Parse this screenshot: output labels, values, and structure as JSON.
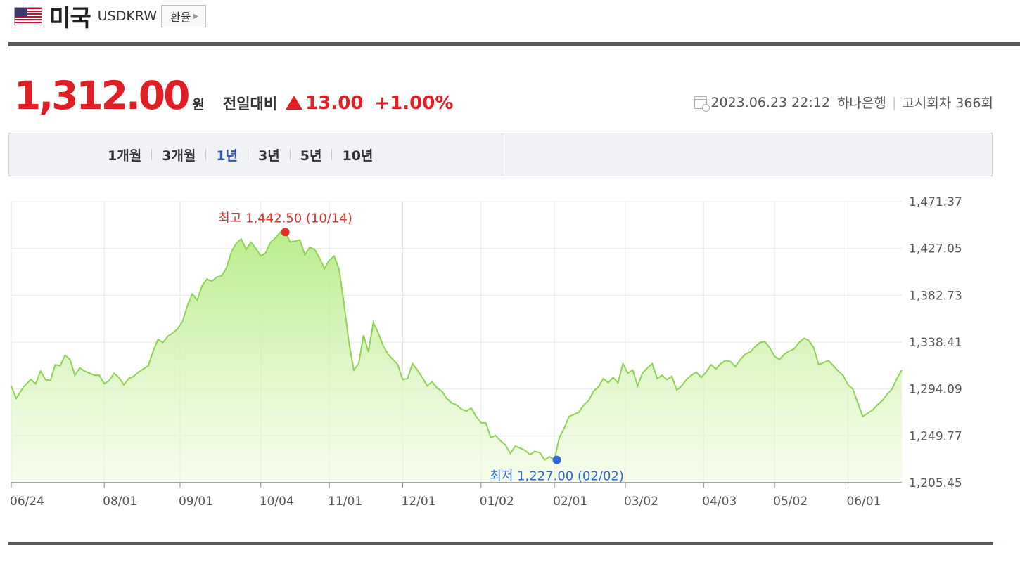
{
  "header": {
    "flag_icon": "us-flag-icon",
    "country": "미국",
    "code": "USDKRW",
    "fx_button": "환율"
  },
  "quote": {
    "price": "1,312.00",
    "unit": "원",
    "compare_label": "전일대비",
    "change": "13.00",
    "change_pct": "+1.00%",
    "direction": "up",
    "up_color": "#e01e24"
  },
  "meta": {
    "datetime": "2023.06.23 22:12",
    "bank": "하나은행",
    "notice": "고시회차 366회"
  },
  "tabs": [
    {
      "label": "1개월",
      "active": false
    },
    {
      "label": "3개월",
      "active": false
    },
    {
      "label": "1년",
      "active": true
    },
    {
      "label": "3년",
      "active": false
    },
    {
      "label": "5년",
      "active": false
    },
    {
      "label": "10년",
      "active": false
    }
  ],
  "chart_data": {
    "type": "area",
    "series_color": "#8fd254",
    "fill_color": "#c8f0a0",
    "ylim": [
      1205.45,
      1471.37
    ],
    "yticks": [
      "1,471.37",
      "1,427.05",
      "1,382.73",
      "1,338.41",
      "1,294.09",
      "1,249.77",
      "1,205.45"
    ],
    "xticks": [
      {
        "label": "06/24",
        "day": 0
      },
      {
        "label": "08/01",
        "day": 38
      },
      {
        "label": "09/01",
        "day": 69
      },
      {
        "label": "10/04",
        "day": 102
      },
      {
        "label": "11/01",
        "day": 130
      },
      {
        "label": "12/01",
        "day": 160
      },
      {
        "label": "01/02",
        "day": 192
      },
      {
        "label": "02/01",
        "day": 222
      },
      {
        "label": "03/02",
        "day": 251
      },
      {
        "label": "04/03",
        "day": 283
      },
      {
        "label": "05/02",
        "day": 312
      },
      {
        "label": "06/01",
        "day": 342
      }
    ],
    "x_max_day": 364,
    "high": {
      "label": "최고 1,442.50 (10/14)",
      "value": 1442.5,
      "day": 112,
      "color": "#e0302a"
    },
    "low": {
      "label": "최저 1,227.00 (02/02)",
      "value": 1227.0,
      "day": 223,
      "color": "#2d6ad6"
    },
    "points": [
      [
        0,
        1297
      ],
      [
        2,
        1285
      ],
      [
        5,
        1296
      ],
      [
        8,
        1303
      ],
      [
        10,
        1299
      ],
      [
        12,
        1311
      ],
      [
        14,
        1303
      ],
      [
        16,
        1302
      ],
      [
        18,
        1317
      ],
      [
        20,
        1316
      ],
      [
        22,
        1326
      ],
      [
        24,
        1322
      ],
      [
        26,
        1307
      ],
      [
        28,
        1314
      ],
      [
        30,
        1311
      ],
      [
        32,
        1309
      ],
      [
        34,
        1307
      ],
      [
        36,
        1307
      ],
      [
        38,
        1299
      ],
      [
        40,
        1302
      ],
      [
        42,
        1309
      ],
      [
        44,
        1305
      ],
      [
        46,
        1298
      ],
      [
        48,
        1304
      ],
      [
        50,
        1306
      ],
      [
        52,
        1310
      ],
      [
        54,
        1313
      ],
      [
        56,
        1316
      ],
      [
        58,
        1330
      ],
      [
        60,
        1341
      ],
      [
        62,
        1338
      ],
      [
        64,
        1344
      ],
      [
        66,
        1347
      ],
      [
        68,
        1351
      ],
      [
        70,
        1358
      ],
      [
        72,
        1373
      ],
      [
        74,
        1384
      ],
      [
        76,
        1378
      ],
      [
        78,
        1392
      ],
      [
        80,
        1398
      ],
      [
        82,
        1396
      ],
      [
        84,
        1400
      ],
      [
        86,
        1401
      ],
      [
        88,
        1409
      ],
      [
        90,
        1424
      ],
      [
        92,
        1432
      ],
      [
        94,
        1436
      ],
      [
        96,
        1426
      ],
      [
        98,
        1433
      ],
      [
        100,
        1427
      ],
      [
        102,
        1420
      ],
      [
        104,
        1423
      ],
      [
        106,
        1433
      ],
      [
        108,
        1437
      ],
      [
        110,
        1442.5
      ],
      [
        112,
        1442.5
      ],
      [
        114,
        1433
      ],
      [
        116,
        1434
      ],
      [
        118,
        1435
      ],
      [
        120,
        1421
      ],
      [
        122,
        1428
      ],
      [
        124,
        1426
      ],
      [
        126,
        1418
      ],
      [
        128,
        1408
      ],
      [
        130,
        1416
      ],
      [
        132,
        1420
      ],
      [
        134,
        1407
      ],
      [
        136,
        1375
      ],
      [
        138,
        1338
      ],
      [
        140,
        1312
      ],
      [
        142,
        1318
      ],
      [
        144,
        1345
      ],
      [
        146,
        1329
      ],
      [
        148,
        1357
      ],
      [
        150,
        1347
      ],
      [
        152,
        1335
      ],
      [
        154,
        1327
      ],
      [
        156,
        1322
      ],
      [
        158,
        1317
      ],
      [
        160,
        1303
      ],
      [
        162,
        1304
      ],
      [
        164,
        1318
      ],
      [
        166,
        1312
      ],
      [
        168,
        1305
      ],
      [
        170,
        1297
      ],
      [
        172,
        1301
      ],
      [
        174,
        1295
      ],
      [
        176,
        1292
      ],
      [
        178,
        1285
      ],
      [
        180,
        1281
      ],
      [
        182,
        1279
      ],
      [
        184,
        1275
      ],
      [
        186,
        1273
      ],
      [
        188,
        1276
      ],
      [
        190,
        1268
      ],
      [
        192,
        1262
      ],
      [
        194,
        1262
      ],
      [
        196,
        1248
      ],
      [
        198,
        1250
      ],
      [
        200,
        1245
      ],
      [
        202,
        1241
      ],
      [
        204,
        1233
      ],
      [
        206,
        1240
      ],
      [
        208,
        1238
      ],
      [
        210,
        1236
      ],
      [
        212,
        1232
      ],
      [
        214,
        1235
      ],
      [
        216,
        1234
      ],
      [
        218,
        1227
      ],
      [
        220,
        1230
      ],
      [
        222,
        1227
      ],
      [
        224,
        1248
      ],
      [
        226,
        1257
      ],
      [
        228,
        1268
      ],
      [
        230,
        1270
      ],
      [
        232,
        1272
      ],
      [
        234,
        1279
      ],
      [
        236,
        1283
      ],
      [
        238,
        1292
      ],
      [
        240,
        1296
      ],
      [
        242,
        1304
      ],
      [
        244,
        1300
      ],
      [
        246,
        1305
      ],
      [
        248,
        1300
      ],
      [
        250,
        1318
      ],
      [
        252,
        1309
      ],
      [
        254,
        1312
      ],
      [
        256,
        1297
      ],
      [
        258,
        1309
      ],
      [
        260,
        1314
      ],
      [
        262,
        1318
      ],
      [
        264,
        1304
      ],
      [
        266,
        1307
      ],
      [
        268,
        1303
      ],
      [
        270,
        1306
      ],
      [
        272,
        1293
      ],
      [
        274,
        1297
      ],
      [
        276,
        1303
      ],
      [
        278,
        1307
      ],
      [
        280,
        1310
      ],
      [
        282,
        1305
      ],
      [
        284,
        1310
      ],
      [
        286,
        1317
      ],
      [
        288,
        1313
      ],
      [
        290,
        1318
      ],
      [
        292,
        1321
      ],
      [
        294,
        1320
      ],
      [
        296,
        1315
      ],
      [
        298,
        1322
      ],
      [
        300,
        1327
      ],
      [
        302,
        1329
      ],
      [
        304,
        1334
      ],
      [
        306,
        1338
      ],
      [
        308,
        1339
      ],
      [
        310,
        1333
      ],
      [
        312,
        1325
      ],
      [
        314,
        1322
      ],
      [
        316,
        1327
      ],
      [
        318,
        1330
      ],
      [
        320,
        1332
      ],
      [
        322,
        1338
      ],
      [
        324,
        1342
      ],
      [
        326,
        1340
      ],
      [
        328,
        1333
      ],
      [
        330,
        1317
      ],
      [
        332,
        1319
      ],
      [
        334,
        1321
      ],
      [
        336,
        1316
      ],
      [
        338,
        1311
      ],
      [
        340,
        1307
      ],
      [
        342,
        1298
      ],
      [
        344,
        1294
      ],
      [
        346,
        1281
      ],
      [
        348,
        1268
      ],
      [
        350,
        1271
      ],
      [
        352,
        1274
      ],
      [
        354,
        1279
      ],
      [
        356,
        1283
      ],
      [
        358,
        1289
      ],
      [
        360,
        1294
      ],
      [
        362,
        1304
      ],
      [
        364,
        1312
      ]
    ]
  }
}
